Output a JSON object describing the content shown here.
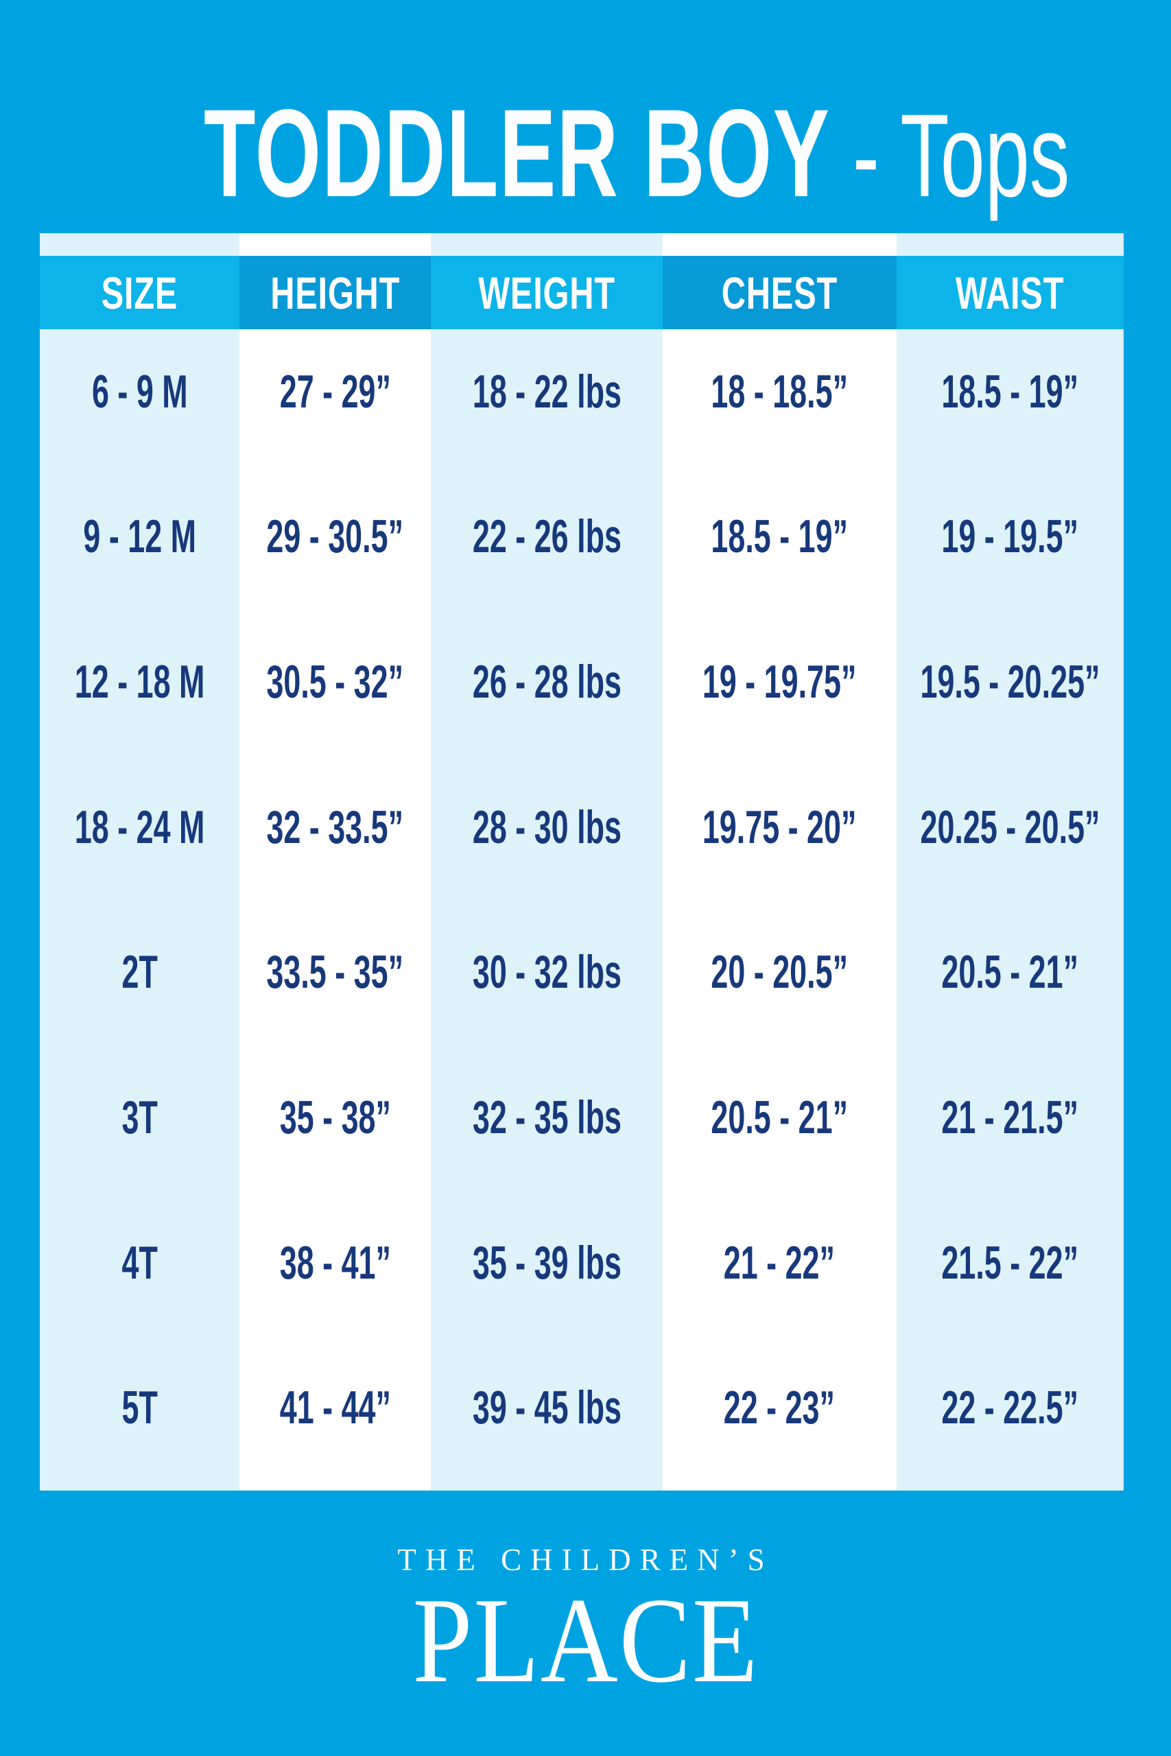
{
  "title": {
    "main": "TODDLER BOY",
    "sub": " - Tops"
  },
  "table": {
    "headers": [
      "SIZE",
      "HEIGHT",
      "WEIGHT",
      "CHEST",
      "WAIST"
    ],
    "rows": [
      [
        "6 - 9 M",
        "27 - 29”",
        "18 - 22 lbs",
        "18 - 18.5”",
        "18.5 - 19”"
      ],
      [
        "9 - 12 M",
        "29 - 30.5”",
        "22 - 26 lbs",
        "18.5 - 19”",
        "19 - 19.5”"
      ],
      [
        "12 - 18 M",
        "30.5 - 32”",
        "26 - 28 lbs",
        "19 - 19.75”",
        "19.5 - 20.25”"
      ],
      [
        "18 - 24 M",
        "32 - 33.5”",
        "28 - 30 lbs",
        "19.75 - 20”",
        "20.25 - 20.5”"
      ],
      [
        "2T",
        "33.5 - 35”",
        "30 - 32 lbs",
        "20 - 20.5”",
        "20.5 - 21”"
      ],
      [
        "3T",
        "35 - 38”",
        "32 - 35 lbs",
        "20.5 - 21”",
        "21 - 21.5”"
      ],
      [
        "4T",
        "38 - 41”",
        "35 - 39 lbs",
        "21 - 22”",
        "21.5 - 22”"
      ],
      [
        "5T",
        "41 - 44”",
        "39 - 45 lbs",
        "22 - 23”",
        "22 - 22.5”"
      ]
    ]
  },
  "footer": {
    "brand_line1": "THE CHILDREN’S",
    "brand_line2": "PLACE"
  },
  "colors": {
    "background": "#00a3e1",
    "header_cell_light": "#0cb4e9",
    "header_cell_dark": "#0899d7",
    "column_stripe_pale": "#def2fa",
    "column_stripe_white": "#ffffff",
    "body_text_navy": "#17397b",
    "title_white": "#fbfdfe"
  },
  "chart_data": {
    "type": "table",
    "title": "TODDLER BOY - Tops",
    "columns": [
      "SIZE",
      "HEIGHT",
      "WEIGHT",
      "CHEST",
      "WAIST"
    ],
    "rows": [
      [
        "6 - 9 M",
        "27 - 29\"",
        "18 - 22 lbs",
        "18 - 18.5\"",
        "18.5 - 19\""
      ],
      [
        "9 - 12 M",
        "29 - 30.5\"",
        "22 - 26 lbs",
        "18.5 - 19\"",
        "19 - 19.5\""
      ],
      [
        "12 - 18 M",
        "30.5 - 32\"",
        "26 - 28 lbs",
        "19 - 19.75\"",
        "19.5 - 20.25\""
      ],
      [
        "18 - 24 M",
        "32 - 33.5\"",
        "28 - 30 lbs",
        "19.75 - 20\"",
        "20.25 - 20.5\""
      ],
      [
        "2T",
        "33.5 - 35\"",
        "30 - 32 lbs",
        "20 - 20.5\"",
        "20.5 - 21\""
      ],
      [
        "3T",
        "35 - 38\"",
        "32 - 35 lbs",
        "20.5 - 21\"",
        "21 - 21.5\""
      ],
      [
        "4T",
        "38 - 41\"",
        "35 - 39 lbs",
        "21 - 22\"",
        "21.5 - 22\""
      ],
      [
        "5T",
        "41 - 44\"",
        "39 - 45 lbs",
        "22 - 23\"",
        "22 - 22.5\""
      ]
    ],
    "brand": "THE CHILDREN'S PLACE"
  }
}
